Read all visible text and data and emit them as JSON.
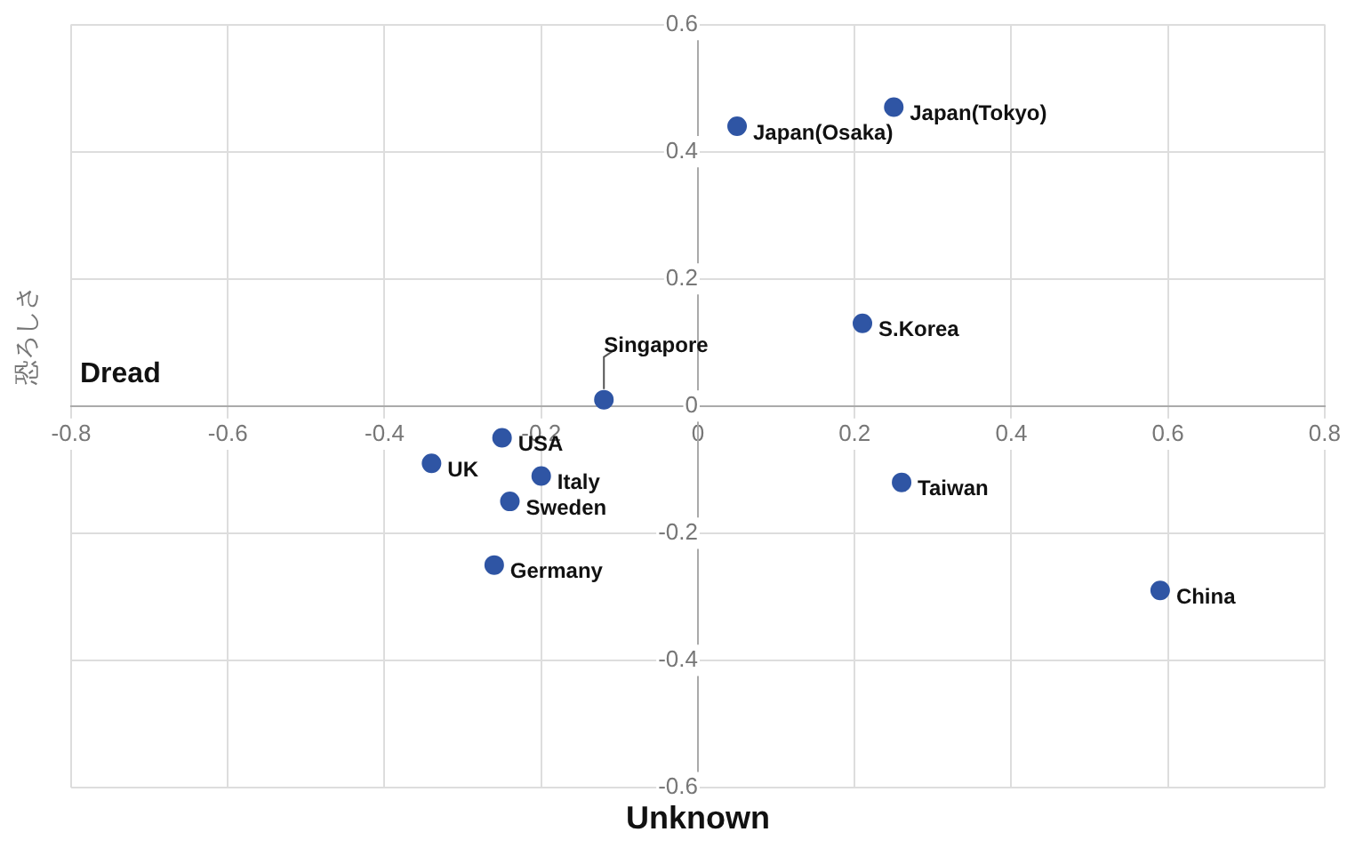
{
  "chart_data": {
    "type": "scatter",
    "xlabel": "Unknown",
    "ylabel": "恐ろしさ",
    "annotations": [
      "Dread"
    ],
    "xlim": [
      -0.8,
      0.8
    ],
    "xticks": [
      -0.8,
      -0.6,
      -0.4,
      -0.2,
      0,
      0.2,
      0.4,
      0.6,
      0.8
    ],
    "ylim": [
      -0.6,
      0.6
    ],
    "yticks": [
      -0.6,
      -0.4,
      -0.2,
      0,
      0.2,
      0.4,
      0.6
    ],
    "grid": true,
    "legend": false,
    "marker": "circle",
    "series": [
      {
        "name": "Japan(Tokyo)",
        "color": "#2f55a4",
        "x": [
          0.25
        ],
        "values": [
          0.47
        ]
      },
      {
        "name": "Japan(Osaka)",
        "color": "#2f55a4",
        "x": [
          0.05
        ],
        "values": [
          0.44
        ]
      },
      {
        "name": "S.Korea",
        "color": "#2f55a4",
        "x": [
          0.21
        ],
        "values": [
          0.13
        ]
      },
      {
        "name": "Singapore",
        "color": "#2f55a4",
        "x": [
          -0.12
        ],
        "values": [
          0.01
        ]
      },
      {
        "name": "USA",
        "color": "#2f55a4",
        "x": [
          -0.25
        ],
        "values": [
          -0.05
        ]
      },
      {
        "name": "UK",
        "color": "#2f55a4",
        "x": [
          -0.34
        ],
        "values": [
          -0.09
        ]
      },
      {
        "name": "Italy",
        "color": "#2f55a4",
        "x": [
          -0.2
        ],
        "values": [
          -0.11
        ]
      },
      {
        "name": "Sweden",
        "color": "#2f55a4",
        "x": [
          -0.24
        ],
        "values": [
          -0.15
        ]
      },
      {
        "name": "Germany",
        "color": "#2f55a4",
        "x": [
          -0.26
        ],
        "values": [
          -0.25
        ]
      },
      {
        "name": "Taiwan",
        "color": "#2f55a4",
        "x": [
          0.26
        ],
        "values": [
          -0.12
        ]
      },
      {
        "name": "China",
        "color": "#2f55a4",
        "x": [
          0.59
        ],
        "values": [
          -0.29
        ]
      }
    ]
  }
}
